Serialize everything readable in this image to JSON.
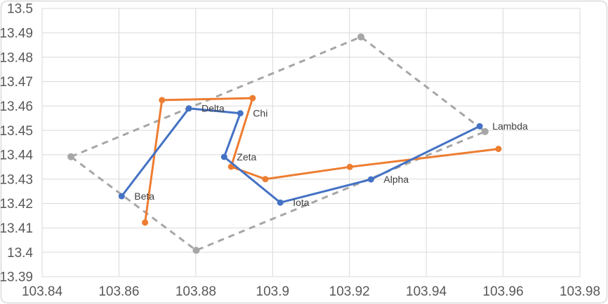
{
  "chart_data": {
    "type": "line",
    "title": "",
    "xlabel": "",
    "ylabel": "",
    "grid": true,
    "legend": "none",
    "x_axis": {
      "min": 103.84,
      "max": 103.98,
      "tick_step": 0.02,
      "tick_values": [
        103.84,
        103.86,
        103.88,
        103.9,
        103.92,
        103.94,
        103.96,
        103.98
      ],
      "ticks": [
        "103.84",
        "103.86",
        "103.88",
        "103.9",
        "103.92",
        "103.94",
        "103.96",
        "103.98"
      ]
    },
    "y_axis": {
      "min": 13.39,
      "max": 13.5,
      "tick_step": 0.01,
      "tick_values": [
        13.39,
        13.4,
        13.41,
        13.42,
        13.43,
        13.44,
        13.45,
        13.46,
        13.47,
        13.48,
        13.49,
        13.5
      ],
      "ticks": [
        "13.39",
        "13.4",
        "13.41",
        "13.42",
        "13.43",
        "13.44",
        "13.45",
        "13.46",
        "13.47",
        "13.48",
        "13.49",
        "13.5"
      ]
    },
    "series": [
      {
        "name": "gray-dashed-boundary",
        "color": "#a6a6a6",
        "style": "dashed",
        "closed": true,
        "markers": true,
        "points": [
          [
            103.8475,
            13.4392
          ],
          [
            103.923,
            13.4883
          ],
          [
            103.9553,
            13.4495
          ],
          [
            103.8801,
            13.4008
          ]
        ]
      },
      {
        "name": "orange-track",
        "color": "#ed7d31",
        "style": "solid",
        "closed": false,
        "markers": true,
        "points": [
          [
            103.8668,
            13.4122
          ],
          [
            103.8712,
            13.4624
          ],
          [
            103.8948,
            13.4632
          ],
          [
            103.8892,
            13.4351
          ],
          [
            103.8981,
            13.43
          ],
          [
            103.9201,
            13.435
          ],
          [
            103.9588,
            13.4424
          ]
        ]
      },
      {
        "name": "blue-track",
        "color": "#4472c4",
        "style": "solid",
        "closed": false,
        "markers": true,
        "points": [
          [
            103.8607,
            13.423
          ],
          [
            103.8782,
            13.459
          ],
          [
            103.8916,
            13.457
          ],
          [
            103.8874,
            13.4391
          ],
          [
            103.902,
            13.4204
          ],
          [
            103.9256,
            13.4299
          ],
          [
            103.9539,
            13.4517
          ]
        ],
        "point_labels": [
          "Beta",
          "Delta",
          "Chi",
          "Zeta",
          "Iota",
          "Alpha",
          "Lambda"
        ]
      }
    ],
    "colors": {
      "background": "#ffffff",
      "frame_border": "#d9d9d9",
      "grid": "#d9d9d9",
      "axis_text": "#595959",
      "label_text": "#404040"
    }
  }
}
